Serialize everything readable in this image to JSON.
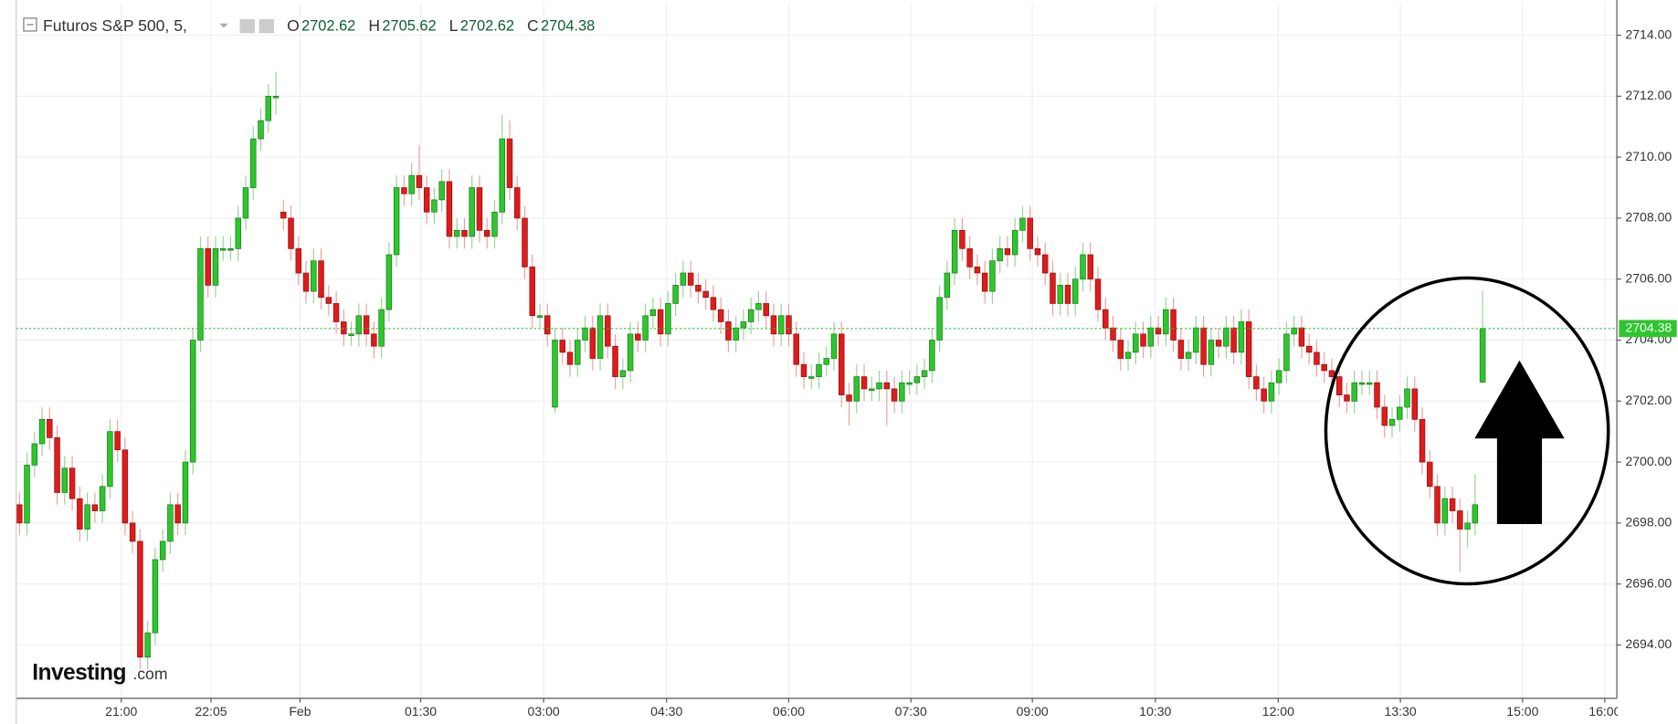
{
  "chart_data": {
    "type": "candlestick",
    "title": "Futuros S&P 500, 5,",
    "ohlc_labels": [
      "O",
      "H",
      "L",
      "C"
    ],
    "watermark": [
      "Investing",
      ".com"
    ],
    "up_color": "#2ec62e",
    "down_color": "#e01b1b",
    "ylim": [
      2692.25,
      2715.05
    ],
    "yticks": [
      {
        "value": 2694,
        "label": "2694.00"
      },
      {
        "value": 2696,
        "label": "2696.00"
      },
      {
        "value": 2698,
        "label": "2698.00"
      },
      {
        "value": 2700,
        "label": "2700.00"
      },
      {
        "value": 2702,
        "label": "2702.00"
      },
      {
        "value": 2704,
        "label": "2704.00"
      },
      {
        "value": 2706,
        "label": "2706.00"
      },
      {
        "value": 2708,
        "label": "2708.00"
      },
      {
        "value": 2710,
        "label": "2710.00"
      },
      {
        "value": 2712,
        "label": "2712.00"
      },
      {
        "value": 2714,
        "label": "2714.00"
      }
    ],
    "xlim": [
      -0.43,
      211.8
    ],
    "xticks": [
      {
        "value": 13.5,
        "label": "21:00"
      },
      {
        "value": 25.4,
        "label": "22:05"
      },
      {
        "value": 37.2,
        "label": "Feb"
      },
      {
        "value": 53.2,
        "label": "01:30"
      },
      {
        "value": 69.5,
        "label": "03:00"
      },
      {
        "value": 85.8,
        "label": "04:30"
      },
      {
        "value": 102.0,
        "label": "06:00"
      },
      {
        "value": 118.2,
        "label": "07:30"
      },
      {
        "value": 134.3,
        "label": "09:00"
      },
      {
        "value": 150.6,
        "label": "10:30"
      },
      {
        "value": 166.9,
        "label": "12:00"
      },
      {
        "value": 183.1,
        "label": "13:30"
      },
      {
        "value": 199.3,
        "label": "15:00"
      },
      {
        "value": 210.2,
        "label": "16:00"
      }
    ],
    "grid": true,
    "ohlc": [
      [
        2698.6,
        2699.0,
        2697.6,
        2698.0
      ],
      [
        2698.0,
        2700.3,
        2697.6,
        2699.9
      ],
      [
        2699.9,
        2701.0,
        2699.5,
        2700.6
      ],
      [
        2700.6,
        2701.8,
        2700.2,
        2701.4
      ],
      [
        2701.4,
        2701.8,
        2700.4,
        2700.8
      ],
      [
        2700.8,
        2701.2,
        2698.6,
        2699.0
      ],
      [
        2699.0,
        2700.2,
        2698.6,
        2699.8
      ],
      [
        2699.8,
        2700.2,
        2698.4,
        2698.8
      ],
      [
        2698.8,
        2699.2,
        2697.4,
        2697.8
      ],
      [
        2697.8,
        2699.0,
        2697.4,
        2698.6
      ],
      [
        2698.6,
        2699.0,
        2698.0,
        2698.4
      ],
      [
        2698.4,
        2699.6,
        2698.0,
        2699.2
      ],
      [
        2699.2,
        2701.4,
        2698.8,
        2701.0
      ],
      [
        2701.0,
        2701.4,
        2700.0,
        2700.4
      ],
      [
        2700.4,
        2700.8,
        2697.6,
        2698.0
      ],
      [
        2698.0,
        2698.4,
        2697.0,
        2697.4
      ],
      [
        2697.4,
        2697.8,
        2693.2,
        2693.6
      ],
      [
        2693.6,
        2694.8,
        2693.2,
        2694.4
      ],
      [
        2694.4,
        2697.2,
        2694.0,
        2696.8
      ],
      [
        2696.8,
        2697.8,
        2696.4,
        2697.4
      ],
      [
        2697.4,
        2699.0,
        2697.0,
        2698.6
      ],
      [
        2698.6,
        2699.0,
        2697.6,
        2698.0
      ],
      [
        2698.0,
        2700.4,
        2697.6,
        2700.0
      ],
      [
        2700.0,
        2704.4,
        2699.6,
        2704.0
      ],
      [
        2704.0,
        2707.4,
        2703.6,
        2707.0
      ],
      [
        2707.0,
        2707.4,
        2705.4,
        2705.8
      ],
      [
        2705.8,
        2707.4,
        2705.4,
        2707.0
      ],
      [
        2707.0,
        2707.4,
        2706.6,
        2707.0
      ],
      [
        2707.0,
        2707.4,
        2706.6,
        2707.0
      ],
      [
        2707.0,
        2708.4,
        2706.6,
        2708.0
      ],
      [
        2708.0,
        2709.4,
        2707.6,
        2709.0
      ],
      [
        2709.0,
        2711.0,
        2708.6,
        2710.6
      ],
      [
        2710.6,
        2711.6,
        2710.2,
        2711.2
      ],
      [
        2711.2,
        2712.4,
        2710.8,
        2712.0
      ],
      [
        2712.0,
        2712.8,
        2711.4,
        2712.0
      ],
      [
        2708.2,
        2708.6,
        2707.6,
        2708.0
      ],
      [
        2708.0,
        2708.4,
        2706.6,
        2707.0
      ],
      [
        2707.0,
        2707.4,
        2705.8,
        2706.2
      ],
      [
        2706.2,
        2706.6,
        2705.2,
        2705.6
      ],
      [
        2705.6,
        2707.0,
        2705.2,
        2706.6
      ],
      [
        2706.6,
        2707.0,
        2705.0,
        2705.4
      ],
      [
        2705.4,
        2705.8,
        2704.8,
        2705.2
      ],
      [
        2705.2,
        2705.6,
        2704.2,
        2704.6
      ],
      [
        2704.6,
        2705.0,
        2703.8,
        2704.2
      ],
      [
        2704.2,
        2704.6,
        2703.8,
        2704.2
      ],
      [
        2704.2,
        2705.2,
        2703.8,
        2704.8
      ],
      [
        2704.8,
        2705.2,
        2703.8,
        2704.2
      ],
      [
        2704.2,
        2704.6,
        2703.4,
        2703.8
      ],
      [
        2703.8,
        2705.4,
        2703.4,
        2705.0
      ],
      [
        2705.0,
        2707.2,
        2704.6,
        2706.8
      ],
      [
        2706.8,
        2709.4,
        2706.4,
        2709.0
      ],
      [
        2709.0,
        2709.4,
        2708.4,
        2708.8
      ],
      [
        2708.8,
        2709.8,
        2708.4,
        2709.4
      ],
      [
        2709.4,
        2710.4,
        2708.6,
        2709.0
      ],
      [
        2709.0,
        2709.4,
        2707.8,
        2708.2
      ],
      [
        2708.2,
        2709.0,
        2707.8,
        2708.6
      ],
      [
        2708.6,
        2709.6,
        2708.2,
        2709.2
      ],
      [
        2709.2,
        2709.6,
        2707.0,
        2707.4
      ],
      [
        2707.4,
        2708.0,
        2707.0,
        2707.6
      ],
      [
        2707.6,
        2708.0,
        2707.0,
        2707.4
      ],
      [
        2707.4,
        2709.4,
        2707.0,
        2709.0
      ],
      [
        2709.0,
        2709.4,
        2707.2,
        2707.6
      ],
      [
        2707.6,
        2708.0,
        2707.0,
        2707.4
      ],
      [
        2707.4,
        2708.6,
        2707.0,
        2708.2
      ],
      [
        2708.2,
        2711.4,
        2707.8,
        2710.6
      ],
      [
        2710.6,
        2711.2,
        2708.6,
        2709.0
      ],
      [
        2709.0,
        2709.4,
        2707.6,
        2708.0
      ],
      [
        2708.0,
        2708.4,
        2706.0,
        2706.4
      ],
      [
        2706.4,
        2706.8,
        2704.4,
        2704.8
      ],
      [
        2704.8,
        2705.2,
        2704.4,
        2704.8
      ],
      [
        2704.8,
        2705.2,
        2703.8,
        2704.2
      ],
      [
        2701.8,
        2704.4,
        2701.6,
        2704.0
      ],
      [
        2704.0,
        2704.4,
        2703.2,
        2703.6
      ],
      [
        2703.6,
        2704.0,
        2702.8,
        2703.2
      ],
      [
        2703.2,
        2704.4,
        2702.8,
        2704.0
      ],
      [
        2704.0,
        2704.8,
        2703.6,
        2704.4
      ],
      [
        2704.4,
        2704.8,
        2703.0,
        2703.4
      ],
      [
        2703.4,
        2705.2,
        2703.0,
        2704.8
      ],
      [
        2704.8,
        2705.2,
        2703.4,
        2703.8
      ],
      [
        2703.8,
        2704.2,
        2702.4,
        2702.8
      ],
      [
        2702.8,
        2703.4,
        2702.4,
        2703.0
      ],
      [
        2703.0,
        2704.6,
        2702.6,
        2704.2
      ],
      [
        2704.2,
        2704.6,
        2703.6,
        2704.0
      ],
      [
        2704.0,
        2705.2,
        2703.6,
        2704.8
      ],
      [
        2704.8,
        2705.4,
        2704.4,
        2705.0
      ],
      [
        2705.0,
        2705.4,
        2703.8,
        2704.2
      ],
      [
        2704.2,
        2705.6,
        2703.8,
        2705.2
      ],
      [
        2705.2,
        2706.2,
        2704.8,
        2705.8
      ],
      [
        2705.8,
        2706.6,
        2705.4,
        2706.2
      ],
      [
        2706.2,
        2706.6,
        2705.4,
        2705.8
      ],
      [
        2705.8,
        2706.2,
        2705.2,
        2705.6
      ],
      [
        2705.6,
        2706.0,
        2705.0,
        2705.4
      ],
      [
        2705.4,
        2705.8,
        2704.6,
        2705.0
      ],
      [
        2705.0,
        2705.4,
        2704.2,
        2704.6
      ],
      [
        2704.6,
        2705.0,
        2703.6,
        2704.0
      ],
      [
        2704.0,
        2704.8,
        2703.6,
        2704.4
      ],
      [
        2704.4,
        2705.0,
        2704.0,
        2704.6
      ],
      [
        2704.6,
        2705.4,
        2704.2,
        2705.0
      ],
      [
        2705.0,
        2705.6,
        2704.6,
        2705.2
      ],
      [
        2705.2,
        2705.6,
        2704.4,
        2704.8
      ],
      [
        2704.8,
        2705.2,
        2703.8,
        2704.2
      ],
      [
        2704.2,
        2705.2,
        2703.8,
        2704.8
      ],
      [
        2704.8,
        2705.2,
        2703.8,
        2704.2
      ],
      [
        2704.2,
        2704.6,
        2702.8,
        2703.2
      ],
      [
        2703.2,
        2703.6,
        2702.4,
        2702.8
      ],
      [
        2702.8,
        2703.2,
        2702.4,
        2702.8
      ],
      [
        2702.8,
        2703.6,
        2702.4,
        2703.2
      ],
      [
        2703.2,
        2703.8,
        2702.8,
        2703.4
      ],
      [
        2703.4,
        2704.6,
        2703.0,
        2704.2
      ],
      [
        2704.2,
        2704.6,
        2701.8,
        2702.2
      ],
      [
        2702.2,
        2702.6,
        2701.2,
        2702.0
      ],
      [
        2702.0,
        2703.2,
        2701.6,
        2702.8
      ],
      [
        2702.8,
        2703.2,
        2702.0,
        2702.4
      ],
      [
        2702.4,
        2702.8,
        2702.0,
        2702.4
      ],
      [
        2702.4,
        2703.0,
        2702.0,
        2702.6
      ],
      [
        2702.6,
        2703.0,
        2701.2,
        2702.4
      ],
      [
        2702.4,
        2702.8,
        2701.6,
        2702.0
      ],
      [
        2702.0,
        2703.0,
        2701.6,
        2702.6
      ],
      [
        2702.6,
        2703.0,
        2702.2,
        2702.6
      ],
      [
        2702.6,
        2703.2,
        2702.2,
        2702.8
      ],
      [
        2702.8,
        2703.4,
        2702.4,
        2703.0
      ],
      [
        2703.0,
        2704.4,
        2702.6,
        2704.0
      ],
      [
        2704.0,
        2705.8,
        2703.6,
        2705.4
      ],
      [
        2705.4,
        2706.6,
        2705.0,
        2706.2
      ],
      [
        2706.2,
        2708.0,
        2705.8,
        2707.6
      ],
      [
        2707.6,
        2708.0,
        2706.6,
        2707.0
      ],
      [
        2707.0,
        2707.4,
        2706.0,
        2706.4
      ],
      [
        2706.4,
        2706.8,
        2705.8,
        2706.2
      ],
      [
        2706.2,
        2706.6,
        2705.2,
        2705.6
      ],
      [
        2705.6,
        2707.0,
        2705.2,
        2706.6
      ],
      [
        2706.6,
        2707.4,
        2706.2,
        2707.0
      ],
      [
        2707.0,
        2707.4,
        2706.4,
        2706.8
      ],
      [
        2706.8,
        2708.0,
        2706.4,
        2707.6
      ],
      [
        2707.6,
        2708.4,
        2707.2,
        2708.0
      ],
      [
        2708.0,
        2708.4,
        2706.6,
        2707.0
      ],
      [
        2707.0,
        2707.4,
        2706.4,
        2706.8
      ],
      [
        2706.8,
        2707.2,
        2705.8,
        2706.2
      ],
      [
        2706.2,
        2706.6,
        2704.8,
        2705.2
      ],
      [
        2705.2,
        2706.2,
        2704.8,
        2705.8
      ],
      [
        2705.8,
        2706.2,
        2704.8,
        2705.2
      ],
      [
        2705.2,
        2706.4,
        2704.8,
        2706.0
      ],
      [
        2706.0,
        2707.2,
        2705.6,
        2706.8
      ],
      [
        2706.8,
        2707.2,
        2705.6,
        2706.0
      ],
      [
        2706.0,
        2706.4,
        2704.6,
        2705.0
      ],
      [
        2705.0,
        2705.4,
        2704.0,
        2704.4
      ],
      [
        2704.4,
        2704.8,
        2703.6,
        2704.0
      ],
      [
        2704.0,
        2704.4,
        2703.0,
        2703.4
      ],
      [
        2703.4,
        2704.0,
        2703.0,
        2703.6
      ],
      [
        2703.6,
        2704.6,
        2703.2,
        2704.2
      ],
      [
        2704.2,
        2704.6,
        2703.4,
        2703.8
      ],
      [
        2703.8,
        2704.8,
        2703.4,
        2704.4
      ],
      [
        2704.4,
        2704.8,
        2703.8,
        2704.2
      ],
      [
        2704.2,
        2705.4,
        2703.8,
        2705.0
      ],
      [
        2705.0,
        2705.4,
        2703.6,
        2704.0
      ],
      [
        2704.0,
        2704.4,
        2703.0,
        2703.4
      ],
      [
        2703.4,
        2704.0,
        2703.0,
        2703.6
      ],
      [
        2703.6,
        2704.8,
        2703.2,
        2704.4
      ],
      [
        2704.4,
        2704.8,
        2702.8,
        2703.2
      ],
      [
        2703.2,
        2704.4,
        2702.8,
        2704.0
      ],
      [
        2704.0,
        2704.4,
        2703.4,
        2703.8
      ],
      [
        2703.8,
        2704.8,
        2703.4,
        2704.4
      ],
      [
        2704.4,
        2704.8,
        2703.2,
        2703.6
      ],
      [
        2703.6,
        2705.0,
        2703.2,
        2704.6
      ],
      [
        2704.6,
        2705.0,
        2702.4,
        2702.8
      ],
      [
        2702.8,
        2703.2,
        2702.0,
        2702.4
      ],
      [
        2702.4,
        2702.8,
        2701.6,
        2702.0
      ],
      [
        2702.0,
        2703.0,
        2701.6,
        2702.6
      ],
      [
        2702.6,
        2703.4,
        2702.2,
        2703.0
      ],
      [
        2703.0,
        2704.6,
        2702.6,
        2704.2
      ],
      [
        2704.2,
        2704.8,
        2703.8,
        2704.4
      ],
      [
        2704.4,
        2704.8,
        2703.4,
        2703.8
      ],
      [
        2703.8,
        2704.2,
        2703.2,
        2703.6
      ],
      [
        2703.6,
        2704.0,
        2702.8,
        2703.2
      ],
      [
        2703.2,
        2703.6,
        2702.6,
        2703.0
      ],
      [
        2703.0,
        2703.4,
        2702.4,
        2702.8
      ],
      [
        2702.8,
        2703.2,
        2701.8,
        2702.2
      ],
      [
        2702.2,
        2702.6,
        2701.6,
        2702.0
      ],
      [
        2702.0,
        2703.0,
        2701.6,
        2702.6
      ],
      [
        2702.6,
        2703.0,
        2702.2,
        2702.6
      ],
      [
        2702.6,
        2703.0,
        2702.2,
        2702.6
      ],
      [
        2702.6,
        2703.0,
        2701.4,
        2701.8
      ],
      [
        2701.8,
        2702.2,
        2700.8,
        2701.2
      ],
      [
        2701.2,
        2701.8,
        2700.8,
        2701.4
      ],
      [
        2701.4,
        2702.2,
        2701.0,
        2701.8
      ],
      [
        2701.8,
        2702.8,
        2701.4,
        2702.4
      ],
      [
        2702.4,
        2702.8,
        2701.0,
        2701.4
      ],
      [
        2701.4,
        2701.8,
        2699.6,
        2700.0
      ],
      [
        2700.0,
        2700.4,
        2698.8,
        2699.2
      ],
      [
        2699.2,
        2699.6,
        2697.6,
        2698.0
      ],
      [
        2698.0,
        2699.2,
        2697.6,
        2698.8
      ],
      [
        2698.8,
        2699.2,
        2698.0,
        2698.4
      ],
      [
        2698.4,
        2698.8,
        2696.4,
        2697.8
      ],
      [
        2697.8,
        2698.4,
        2697.2,
        2698.0
      ],
      [
        2698.0,
        2699.6,
        2697.6,
        2698.6
      ],
      [
        2702.62,
        2705.62,
        2702.62,
        2704.38
      ]
    ]
  }
}
